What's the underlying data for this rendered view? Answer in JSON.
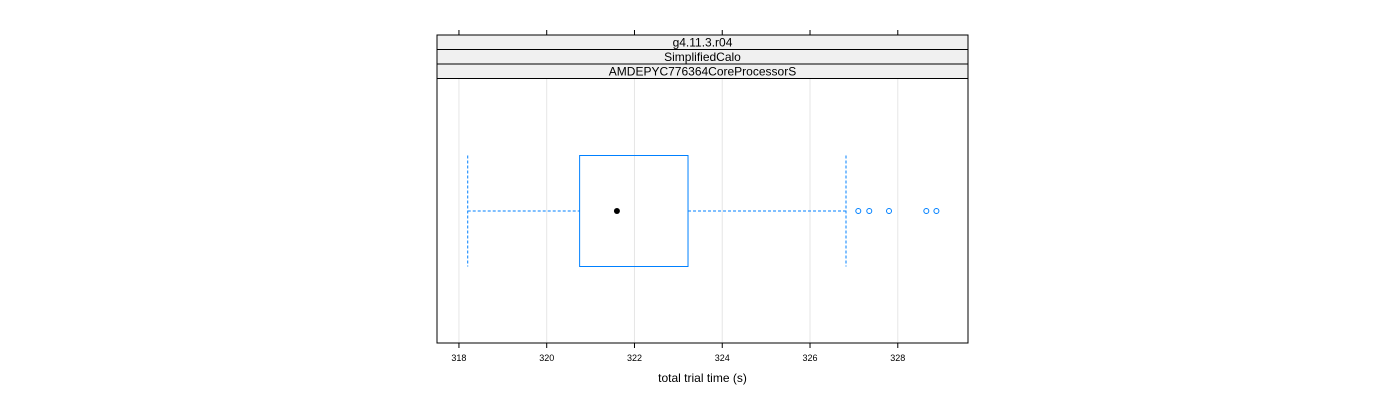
{
  "chart_data": {
    "type": "boxplot",
    "strips": [
      "g4.11.3.r04",
      "SimplifiedCalo",
      "AMDEPYC776364CoreProcessorS"
    ],
    "xlabel": "total trial time (s)",
    "ylabel": "",
    "xlim": [
      317.5,
      329.6
    ],
    "x_ticks": [
      318,
      320,
      322,
      324,
      326,
      328
    ],
    "grid": true,
    "box": {
      "whisker_low": 318.2,
      "q1": 320.75,
      "median": 321.6,
      "q3": 323.22,
      "whisker_high": 326.82,
      "outliers": [
        327.1,
        327.35,
        327.8,
        328.65,
        328.88
      ]
    },
    "colors": {
      "box": "#0080ff",
      "whisker": "#0080ff",
      "median_dot": "#000000",
      "strip_bg": "#f0f0f0",
      "grid": "#e6e6e6",
      "panel_border": "#000000"
    }
  }
}
